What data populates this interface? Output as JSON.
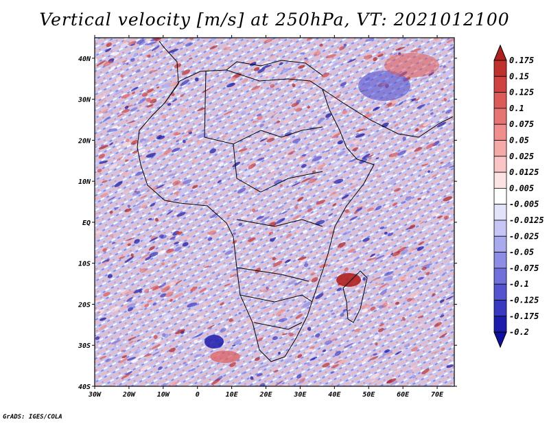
{
  "title": "Vertical velocity [m/s] at 250hPa, VT: 2021012100",
  "credit": "GrADS: IGES/COLA",
  "map": {
    "lon_range": [
      -30,
      75
    ],
    "lat_range": [
      -40,
      45
    ],
    "x_tick_labels": [
      "30W",
      "20W",
      "10W",
      "0",
      "10E",
      "20E",
      "30E",
      "40E",
      "50E",
      "60E",
      "70E"
    ],
    "y_tick_labels": [
      "40S",
      "30S",
      "20S",
      "10S",
      "EQ",
      "10N",
      "20N",
      "30N",
      "40N"
    ]
  },
  "colorbar": {
    "levels": [
      "0.175",
      "0.15",
      "0.125",
      "0.1",
      "0.075",
      "0.05",
      "0.025",
      "0.0125",
      "0.005",
      "-0.005",
      "-0.0125",
      "-0.025",
      "-0.05",
      "-0.075",
      "-0.1",
      "-0.125",
      "-0.175",
      "-0.2"
    ],
    "colors": [
      "#b0201e",
      "#c0302c",
      "#d04240",
      "#dc5a58",
      "#e67472",
      "#ef8e8c",
      "#f5aaa8",
      "#f9c6c5",
      "#fce3e2",
      "#ffffff",
      "#e2e2fb",
      "#c6c6f6",
      "#a9a9ef",
      "#8d8de6",
      "#7070dc",
      "#5454d0",
      "#3838c0",
      "#1c1cac",
      "#1010a0"
    ]
  }
}
